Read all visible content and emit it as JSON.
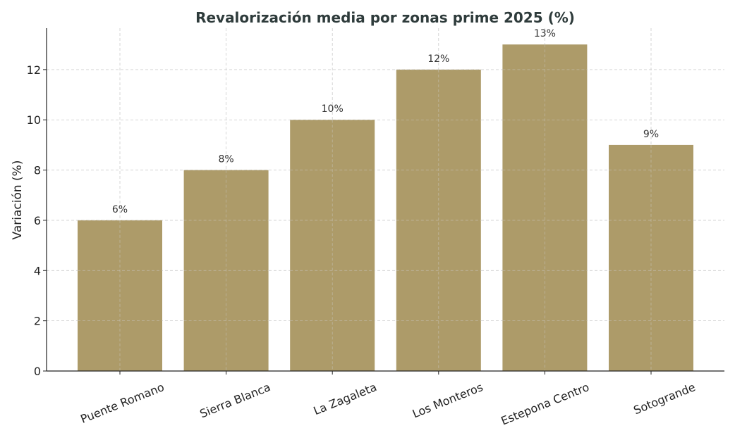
{
  "chart_data": {
    "type": "bar",
    "title": "Revalorización media por zonas prime 2025 (%)",
    "xlabel": "",
    "ylabel": "Variación (%)",
    "categories": [
      "Puente Romano",
      "Sierra Blanca",
      "La Zagaleta",
      "Los Monteros",
      "Estepona Centro",
      "Sotogrande"
    ],
    "values": [
      6,
      8,
      10,
      12,
      13,
      9
    ],
    "data_labels": [
      "6%",
      "8%",
      "10%",
      "12%",
      "13%",
      "9%"
    ],
    "ylim": [
      0,
      13.65
    ],
    "yticks": [
      0,
      2,
      4,
      6,
      8,
      10,
      12
    ],
    "grid": true,
    "bar_color": "#ad9b69",
    "grid_color": "#cccccc",
    "title_color": "#2e3b3b"
  }
}
